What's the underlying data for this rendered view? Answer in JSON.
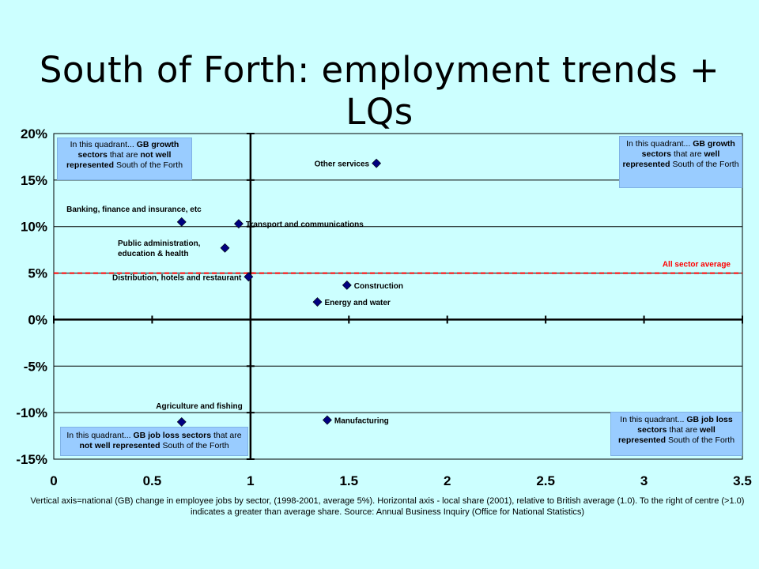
{
  "title": "South of Forth: employment trends + LQs",
  "chart_data": {
    "type": "scatter",
    "xlim": [
      0,
      3.5
    ],
    "ylim": [
      -15,
      20
    ],
    "x_ticks": [
      {
        "value": 0,
        "label": "0"
      },
      {
        "value": 0.5,
        "label": "0.5"
      },
      {
        "value": 1,
        "label": "1"
      },
      {
        "value": 1.5,
        "label": "1.5"
      },
      {
        "value": 2,
        "label": "2"
      },
      {
        "value": 2.5,
        "label": "2.5"
      },
      {
        "value": 3,
        "label": "3"
      },
      {
        "value": 3.5,
        "label": "3.5"
      }
    ],
    "y_ticks": [
      {
        "value": 20,
        "label": "20%"
      },
      {
        "value": 15,
        "label": "15%"
      },
      {
        "value": 10,
        "label": "10%"
      },
      {
        "value": 5,
        "label": "5%"
      },
      {
        "value": 0,
        "label": "0%"
      },
      {
        "value": -5,
        "label": "-5%"
      },
      {
        "value": -10,
        "label": "-10%"
      },
      {
        "value": -15,
        "label": "-15%"
      }
    ],
    "grid": "horizontal",
    "reference_line": {
      "y": 5,
      "label": "All sector average",
      "color": "#ff0000"
    },
    "points": [
      {
        "label": "Other services",
        "x": 1.64,
        "y": 16.8,
        "label_side": "left"
      },
      {
        "label": "Banking, finance and insurance, etc",
        "x": 0.65,
        "y": 10.5,
        "label_side": "above-left"
      },
      {
        "label": "Transport and communications",
        "x": 0.94,
        "y": 10.3,
        "label_side": "right"
      },
      {
        "label": "Public administration, education & health",
        "x": 0.87,
        "y": 7.7,
        "label_side": "left"
      },
      {
        "label": "Distribution, hotels and restaurant",
        "x": 0.99,
        "y": 4.6,
        "label_side": "left"
      },
      {
        "label": "Construction",
        "x": 1.49,
        "y": 3.7,
        "label_side": "right"
      },
      {
        "label": "Energy and water",
        "x": 1.34,
        "y": 1.9,
        "label_side": "right"
      },
      {
        "label": "Agriculture and fishing",
        "x": 0.65,
        "y": -11.0,
        "label_side": "above"
      },
      {
        "label": "Manufacturing",
        "x": 1.39,
        "y": -10.8,
        "label_side": "right"
      }
    ],
    "marker_color": "#000080"
  },
  "callouts": {
    "top_left": {
      "pre": "In this quadrant... ",
      "b1": "GB growth sectors",
      "mid": " that are ",
      "b2": "not well represented",
      "post": " South of the Forth"
    },
    "top_right": {
      "pre": "In this quadrant... ",
      "b1": "GB growth sectors",
      "mid": " that are ",
      "b2": "well represented",
      "post": " South of the Forth"
    },
    "bottom_left": {
      "pre": "In this quadrant... ",
      "b1": "GB job loss sectors",
      "mid": " that are ",
      "b2": "not well represented",
      "post": " South of the Forth"
    },
    "bottom_right": {
      "pre": "In this quadrant... ",
      "b1": "GB job loss sectors",
      "mid": " that are ",
      "b2": "well represented",
      "post": " South of the Forth"
    }
  },
  "caption": "Vertical axis=national (GB) change in employee jobs by sector, (1998-2001, average 5%). Horizontal axis - local share (2001), relative to British average (1.0). To the right of centre (>1.0) indicates a greater than average share. Source: Annual Business Inquiry (Office for National Statistics)"
}
